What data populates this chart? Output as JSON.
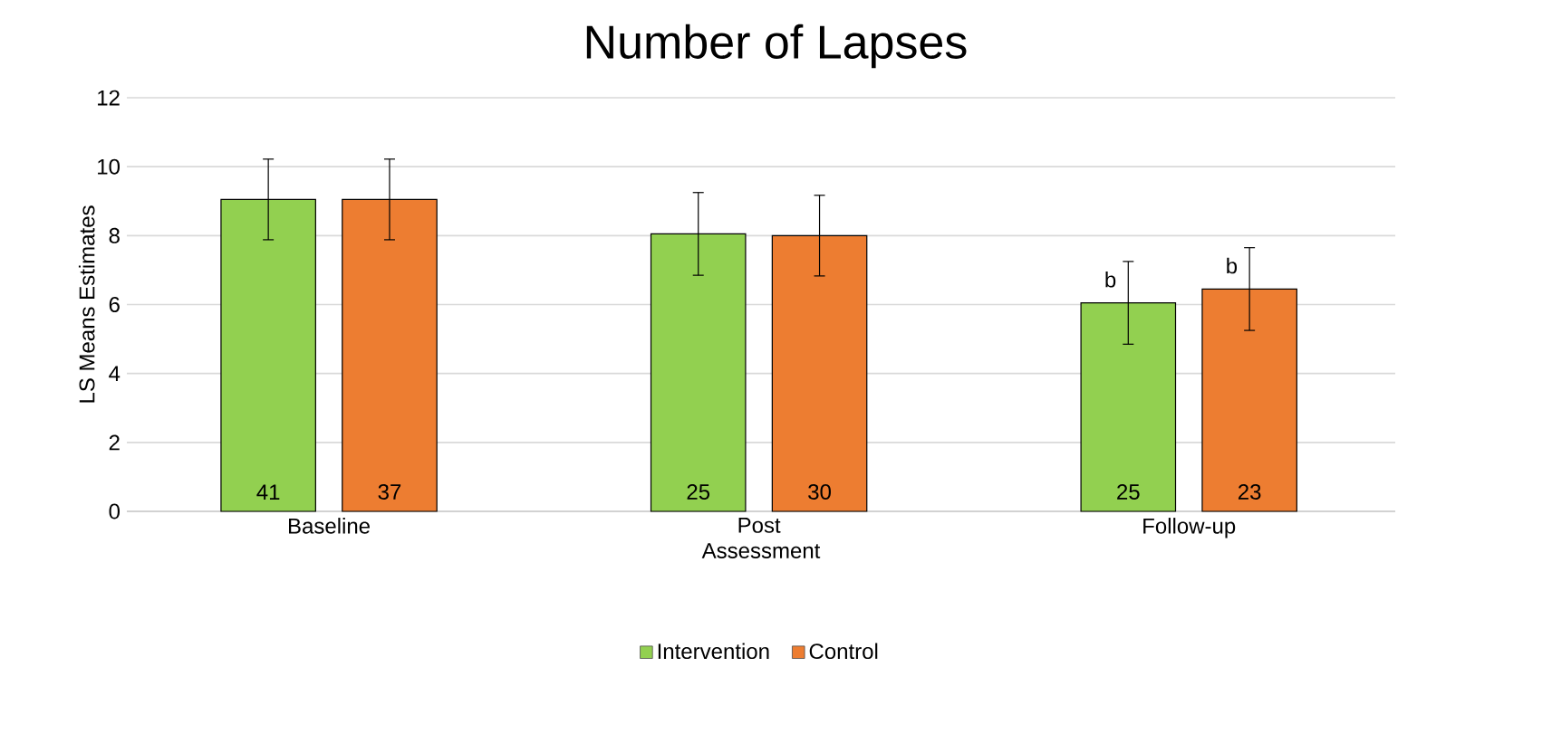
{
  "chart_data": {
    "type": "bar",
    "title": "Number of Lapses",
    "xlabel": "Assessment",
    "ylabel": "LS Means Estimates",
    "categories": [
      "Baseline",
      "Post",
      "Follow-up"
    ],
    "series": [
      {
        "name": "Intervention",
        "color": "#92d050",
        "values": [
          9.05,
          8.05,
          6.05
        ],
        "errors": [
          1.17,
          1.2,
          1.2
        ]
      },
      {
        "name": "Control",
        "color": "#ed7d31",
        "values": [
          9.05,
          8.0,
          6.45
        ],
        "errors": [
          1.17,
          1.17,
          1.2
        ]
      }
    ],
    "annotations": [
      "41",
      "25",
      "25",
      "37",
      "30",
      "23",
      "b",
      "b"
    ],
    "ylim": [
      0,
      12
    ],
    "yticks": [
      0,
      2,
      4,
      6,
      8,
      10,
      12
    ],
    "grid": "y",
    "legend": "bottom"
  }
}
